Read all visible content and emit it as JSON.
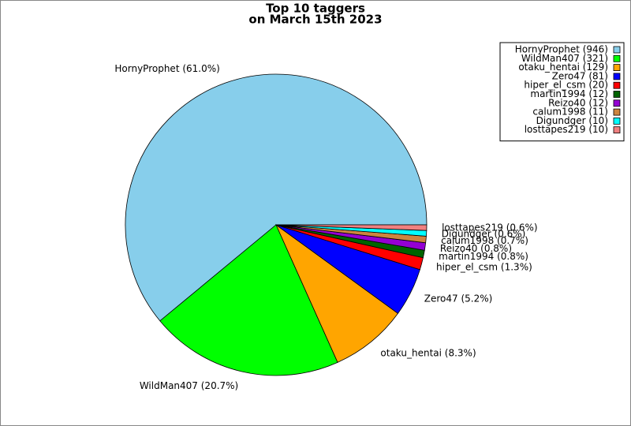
{
  "chart_data": {
    "type": "pie",
    "title": [
      "Top 10 taggers",
      "on March 15th 2023"
    ],
    "values": [
      61.0,
      20.7,
      8.3,
      5.2,
      1.3,
      0.8,
      0.8,
      0.7,
      0.6,
      0.6
    ],
    "value_labels": [
      "HornyProphet (61.0%)",
      "WildMan407 (20.7%)",
      "otaku_hentai (8.3%)",
      "Zero47 (5.2%)",
      "hiper_el_csm (1.3%)",
      "martin1994 (0.8%)",
      "Reizo40 (0.8%)",
      "calum1998 (0.7%)",
      "Digundger (0.6%)",
      "losttapes219 (0.6%)"
    ],
    "legend_labels": [
      "HornyProphet (946)",
      "WildMan407 (321)",
      "otaku_hentai (129)",
      "Zero47 (81)",
      "hiper_el_csm (20)",
      "martin1994 (12)",
      "Reizo40 (12)",
      "calum1998 (11)",
      "Digundger (10)",
      "losttapes219 (10)"
    ],
    "colors": [
      "#87ceeb",
      "#00ff00",
      "#ffa500",
      "#0000ff",
      "#ff0000",
      "#006400",
      "#9400d3",
      "#cd853f",
      "#00ffff",
      "#f08080"
    ],
    "legend": "upper right"
  }
}
